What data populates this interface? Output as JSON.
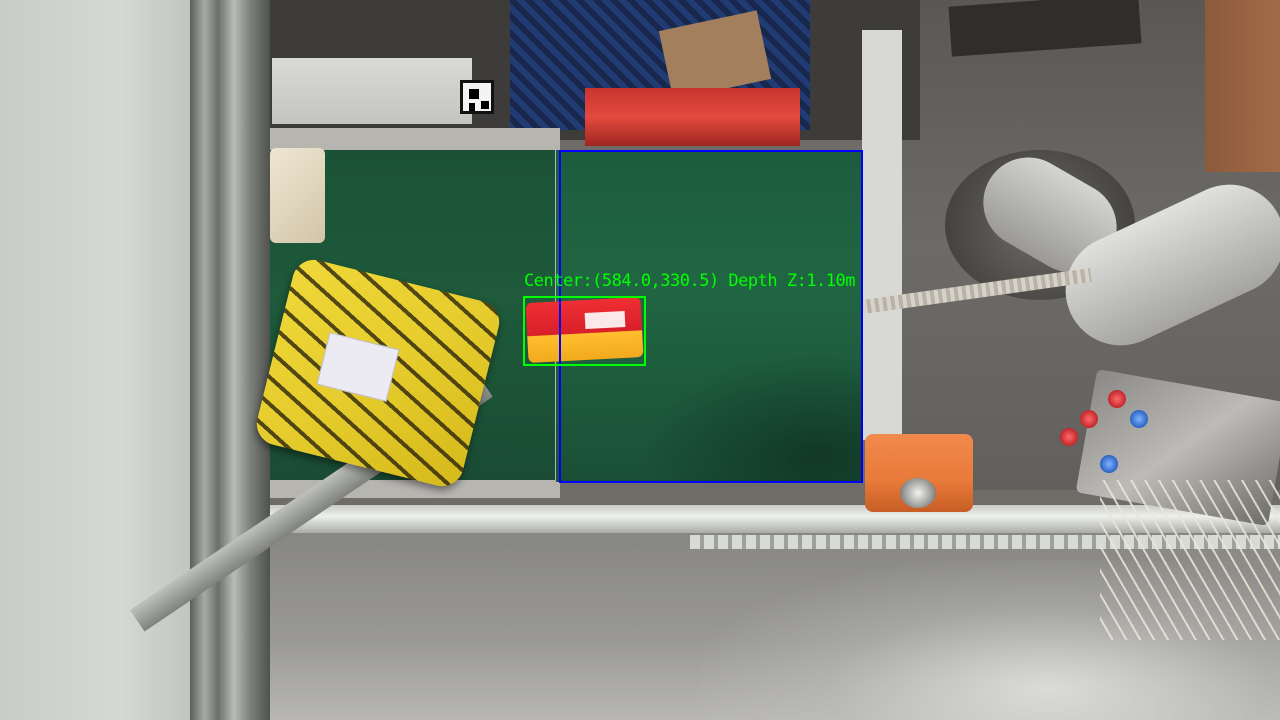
{
  "overlay": {
    "detection_label": "Center:(584.0,330.5) Depth Z:1.10m",
    "detection_color": "#00ff00",
    "workspace_color": "#0000ff"
  },
  "scene": {
    "conveyor_color": "#1e5a3b",
    "parcel_yellow_color": "#e6cc2c",
    "parcel_red_color": "#d81f2a",
    "motor_color": "#e87a3a"
  }
}
